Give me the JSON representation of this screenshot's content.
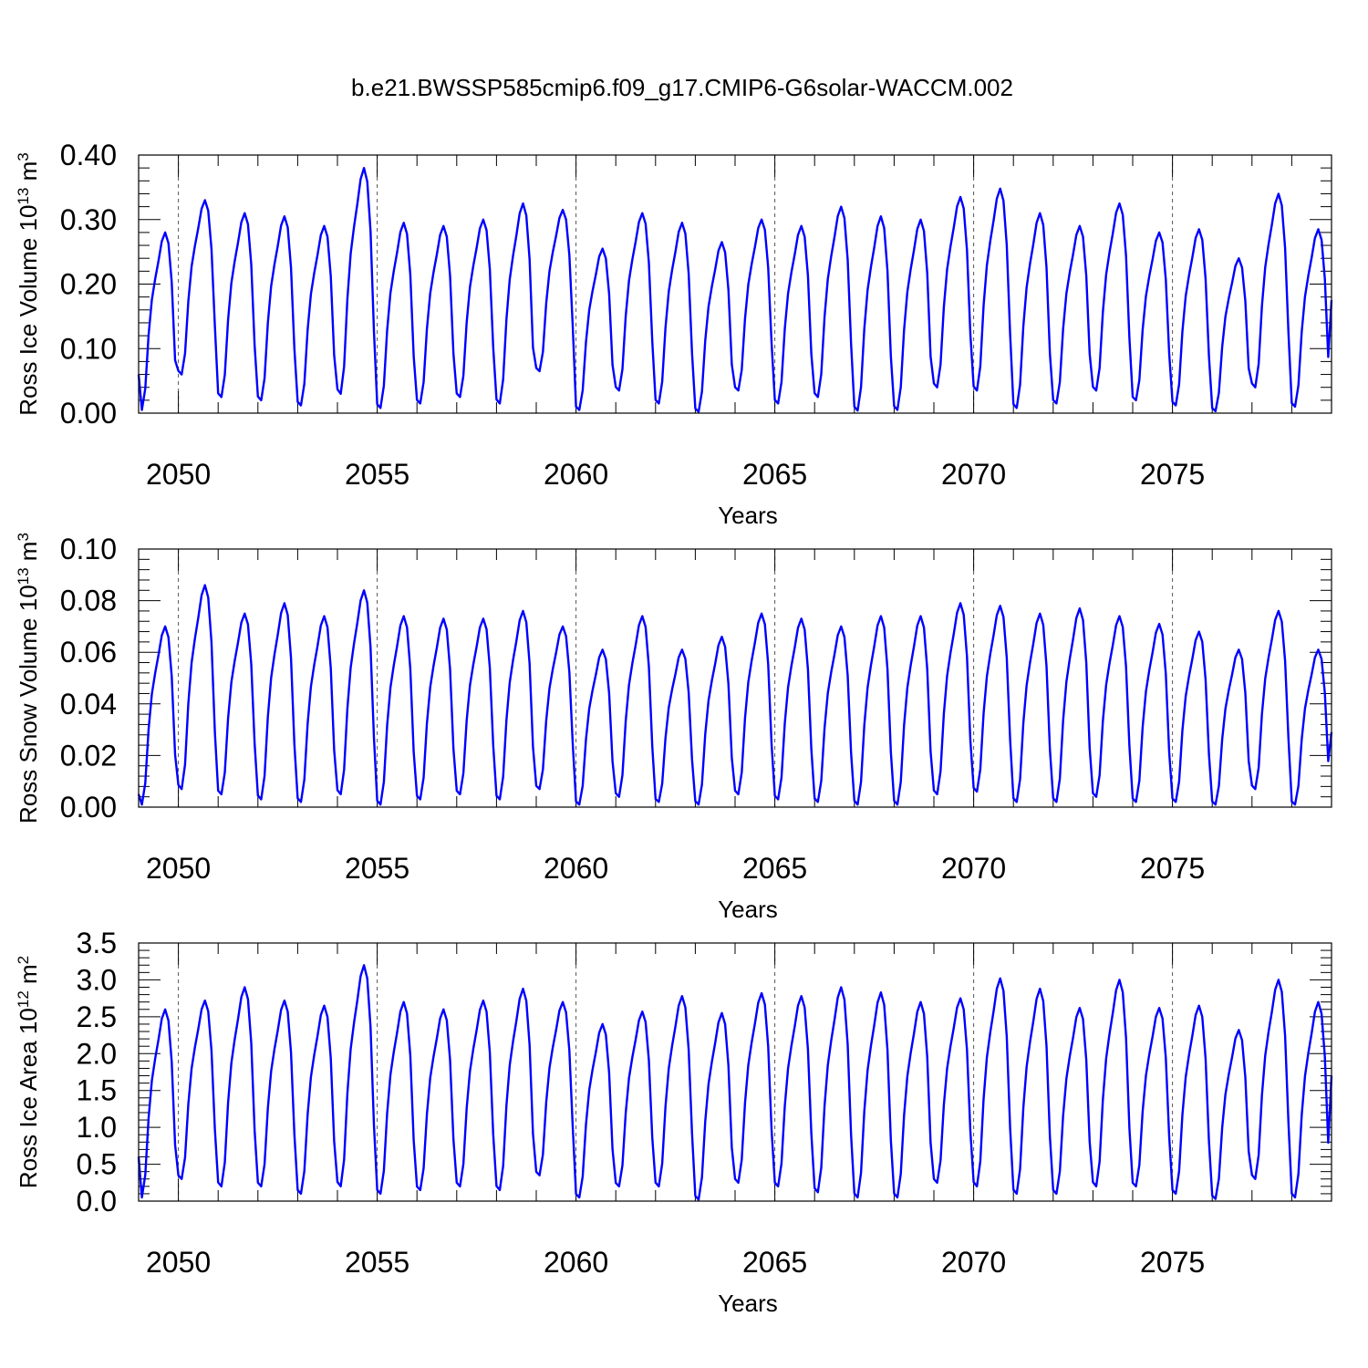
{
  "title": "b.e21.BWSSP585cmip6.f09_g17.CMIP6-G6solar-WACCM.002",
  "chart_data": [
    {
      "type": "line",
      "ylabel_text": "Ross Ice Volume 10",
      "ylabel_exp": "13",
      "ylabel_unit": " m",
      "ylabel_unit_exp": "3",
      "xlabel": "Years",
      "xlim": [
        2049.0,
        2079.0
      ],
      "ylim": [
        0.0,
        0.4
      ],
      "yticks": [
        0.0,
        0.1,
        0.2,
        0.3,
        0.4
      ],
      "ytick_labels": [
        "0.00",
        "0.10",
        "0.20",
        "0.30",
        "0.40"
      ],
      "xticks": [
        2050,
        2055,
        2060,
        2065,
        2070,
        2075
      ],
      "xtick_labels": [
        "2050",
        "2055",
        "2060",
        "2065",
        "2070",
        "2075"
      ],
      "color": "#0000ff",
      "x_start": 2049.0,
      "x_step": 0.0833333,
      "annual_max": [
        0.28,
        0.33,
        0.31,
        0.305,
        0.29,
        0.38,
        0.295,
        0.29,
        0.3,
        0.325,
        0.315,
        0.255,
        0.31,
        0.295,
        0.265,
        0.3,
        0.29,
        0.32,
        0.305,
        0.3,
        0.335,
        0.348,
        0.31,
        0.29,
        0.325,
        0.28,
        0.285,
        0.24,
        0.34,
        0.285
      ],
      "annual_min": [
        0.005,
        0.06,
        0.025,
        0.02,
        0.012,
        0.03,
        0.008,
        0.015,
        0.025,
        0.015,
        0.065,
        0.005,
        0.035,
        0.015,
        0.002,
        0.035,
        0.015,
        0.025,
        0.004,
        0.005,
        0.04,
        0.035,
        0.008,
        0.015,
        0.035,
        0.02,
        0.012,
        0.003,
        0.04,
        0.01
      ],
      "first_value": 0.06,
      "last_value": 0.175
    },
    {
      "type": "line",
      "ylabel_text": "Ross Snow Volume 10",
      "ylabel_exp": "13",
      "ylabel_unit": " m",
      "ylabel_unit_exp": "3",
      "xlabel": "Years",
      "xlim": [
        2049.0,
        2079.0
      ],
      "ylim": [
        0.0,
        0.1
      ],
      "yticks": [
        0.0,
        0.02,
        0.04,
        0.06,
        0.08,
        0.1
      ],
      "ytick_labels": [
        "0.00",
        "0.02",
        "0.04",
        "0.06",
        "0.08",
        "0.10"
      ],
      "xticks": [
        2050,
        2055,
        2060,
        2065,
        2070,
        2075
      ],
      "xtick_labels": [
        "2050",
        "2055",
        "2060",
        "2065",
        "2070",
        "2075"
      ],
      "color": "#0000ff",
      "x_start": 2049.0,
      "x_step": 0.0833333,
      "annual_max": [
        0.07,
        0.086,
        0.075,
        0.079,
        0.074,
        0.084,
        0.074,
        0.073,
        0.073,
        0.076,
        0.07,
        0.061,
        0.074,
        0.061,
        0.066,
        0.075,
        0.073,
        0.07,
        0.074,
        0.074,
        0.079,
        0.078,
        0.075,
        0.077,
        0.074,
        0.071,
        0.068,
        0.061,
        0.076,
        0.061
      ],
      "annual_min": [
        0.001,
        0.007,
        0.005,
        0.003,
        0.002,
        0.005,
        0.001,
        0.003,
        0.005,
        0.003,
        0.007,
        0.001,
        0.004,
        0.002,
        0.001,
        0.005,
        0.003,
        0.002,
        0.001,
        0.001,
        0.005,
        0.006,
        0.002,
        0.002,
        0.004,
        0.002,
        0.002,
        0.001,
        0.007,
        0.001
      ],
      "first_value": 0.005,
      "last_value": 0.029
    },
    {
      "type": "line",
      "ylabel_text": "Ross Ice Area 10",
      "ylabel_exp": "12",
      "ylabel_unit": " m",
      "ylabel_unit_exp": "2",
      "xlabel": "Years",
      "xlim": [
        2049.0,
        2079.0
      ],
      "ylim": [
        0.0,
        3.5
      ],
      "yticks": [
        0.0,
        0.5,
        1.0,
        1.5,
        2.0,
        2.5,
        3.0,
        3.5
      ],
      "ytick_labels": [
        "0.0",
        "0.5",
        "1.0",
        "1.5",
        "2.0",
        "2.5",
        "3.0",
        "3.5"
      ],
      "xticks": [
        2050,
        2055,
        2060,
        2065,
        2070,
        2075
      ],
      "xtick_labels": [
        "2050",
        "2055",
        "2060",
        "2065",
        "2070",
        "2075"
      ],
      "color": "#0000ff",
      "x_start": 2049.0,
      "x_step": 0.0833333,
      "annual_max": [
        2.6,
        2.72,
        2.9,
        2.72,
        2.65,
        3.2,
        2.7,
        2.6,
        2.72,
        2.88,
        2.7,
        2.4,
        2.57,
        2.78,
        2.55,
        2.82,
        2.78,
        2.9,
        2.83,
        2.7,
        2.75,
        3.02,
        2.88,
        2.62,
        3.0,
        2.62,
        2.65,
        2.32,
        3.0,
        2.7
      ],
      "annual_min": [
        0.05,
        0.3,
        0.2,
        0.2,
        0.1,
        0.2,
        0.1,
        0.15,
        0.2,
        0.15,
        0.35,
        0.05,
        0.2,
        0.2,
        0.02,
        0.25,
        0.2,
        0.12,
        0.05,
        0.05,
        0.25,
        0.2,
        0.1,
        0.1,
        0.2,
        0.2,
        0.1,
        0.03,
        0.3,
        0.05
      ],
      "first_value": 0.6,
      "last_value": 1.7
    }
  ]
}
